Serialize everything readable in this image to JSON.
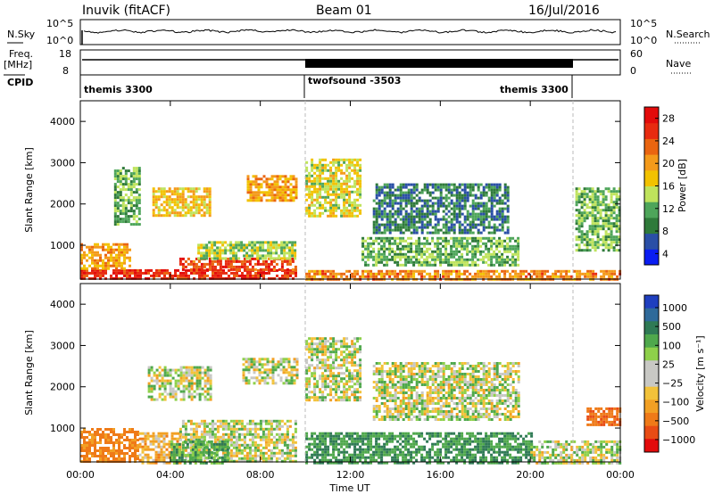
{
  "header": {
    "station": "Inuvik (fitACF)",
    "beam": "Beam 01",
    "date": "16/Jul/2016"
  },
  "panels": {
    "nsky": {
      "label": "N.Sky",
      "left_ticks": [
        "10^5",
        "10^0"
      ],
      "right_ticks": [
        "10^5",
        "10^0"
      ],
      "right_label": "N.Search",
      "right_label_style": "dotted"
    },
    "freq": {
      "label_line1": "Freq.",
      "label_line2": "[MHz]",
      "left_ticks": [
        "18",
        "8"
      ],
      "right_ticks": [
        "60",
        "0"
      ],
      "right_label": "Nave",
      "right_label_style": "dotted"
    },
    "cpid": {
      "label": "CPID",
      "segments": [
        {
          "name": "themis 3300",
          "start_hour": 0,
          "end_hour": 10
        },
        {
          "name": "twofsound -3503",
          "start_hour": 10,
          "end_hour": 22
        },
        {
          "name": "themis 3300",
          "start_hour": 22,
          "end_hour": 24
        }
      ]
    }
  },
  "axes": {
    "ylabel": "Slant Range [km]",
    "xlabel": "Time UT",
    "yticks": [
      "1000",
      "2000",
      "3000",
      "4000"
    ],
    "xticks": [
      "00:00",
      "04:00",
      "08:00",
      "12:00",
      "16:00",
      "20:00",
      "00:00"
    ]
  },
  "colorbars": {
    "power": {
      "label": "Power [dB]",
      "ticks": [
        "4",
        "8",
        "12",
        "16",
        "20",
        "24",
        "28"
      ],
      "colors": [
        "#0a1df2",
        "#2a4fa6",
        "#2f7a3a",
        "#4ea55a",
        "#bfe35c",
        "#f2c200",
        "#f49a1a",
        "#ea6510",
        "#e82b10",
        "#e30b0b"
      ]
    },
    "velocity": {
      "label": "Velocity [m s⁻¹]",
      "ticks": [
        "1000",
        "500",
        "100",
        "25",
        "−25",
        "−100",
        "−500",
        "−1000"
      ],
      "colors": [
        "#1f3fbf",
        "#2f6a9a",
        "#2f7a55",
        "#4fa84c",
        "#8ed04a",
        "#c8c8c4",
        "#c8c8c4",
        "#f2c23a",
        "#f2a024",
        "#ef7a18",
        "#e84c14",
        "#e30b0b"
      ]
    }
  },
  "chart_data": [
    {
      "type": "heatmap",
      "title": "Power",
      "x_range_hours": [
        0,
        24
      ],
      "y_range_km": [
        180,
        4500
      ],
      "ylabel": "Slant Range [km]",
      "colorbar": "Power [dB]",
      "regions": [
        {
          "t0": 0.0,
          "t1": 9.6,
          "r0": 180,
          "r1": 420,
          "level": 28
        },
        {
          "t0": 4.4,
          "t1": 9.6,
          "r0": 420,
          "r1": 700,
          "level": 26
        },
        {
          "t0": 5.2,
          "t1": 9.6,
          "r0": 700,
          "r1": 1100,
          "level": 14
        },
        {
          "t0": 0.0,
          "t1": 2.2,
          "r0": 420,
          "r1": 1050,
          "level": 20
        },
        {
          "t0": 1.5,
          "t1": 2.6,
          "r0": 1500,
          "r1": 2900,
          "level": 12
        },
        {
          "t0": 3.2,
          "t1": 5.8,
          "r0": 1700,
          "r1": 2400,
          "level": 18
        },
        {
          "t0": 7.4,
          "t1": 9.6,
          "r0": 2100,
          "r1": 2700,
          "level": 20
        },
        {
          "t0": 10.0,
          "t1": 12.4,
          "r0": 1700,
          "r1": 3100,
          "level": 16
        },
        {
          "t0": 10.0,
          "t1": 24.0,
          "r0": 180,
          "r1": 400,
          "level": 22
        },
        {
          "t0": 12.5,
          "t1": 19.5,
          "r0": 500,
          "r1": 1200,
          "level": 12
        },
        {
          "t0": 13.0,
          "t1": 19.0,
          "r0": 1300,
          "r1": 2500,
          "level": 8
        },
        {
          "t0": 22.0,
          "t1": 24.0,
          "r0": 900,
          "r1": 2400,
          "level": 12
        }
      ]
    },
    {
      "type": "heatmap",
      "title": "Velocity",
      "x_range_hours": [
        0,
        24
      ],
      "y_range_km": [
        180,
        4500
      ],
      "ylabel": "Slant Range [km]",
      "xlabel": "Time UT",
      "colorbar": "Velocity [m s⁻¹]",
      "regions": [
        {
          "t0": 0.0,
          "t1": 2.6,
          "r0": 180,
          "r1": 1000,
          "velocity": -300
        },
        {
          "t0": 2.6,
          "t1": 4.4,
          "r0": 180,
          "r1": 900,
          "velocity": -120
        },
        {
          "t0": 4.4,
          "t1": 9.6,
          "r0": 180,
          "r1": 1200,
          "velocity": 0
        },
        {
          "t0": 4.0,
          "t1": 6.6,
          "r0": 180,
          "r1": 700,
          "velocity": 150
        },
        {
          "t0": 3.0,
          "t1": 5.8,
          "r0": 1700,
          "r1": 2500,
          "velocity": 0
        },
        {
          "t0": 7.2,
          "t1": 9.6,
          "r0": 2100,
          "r1": 2700,
          "velocity": 0
        },
        {
          "t0": 10.0,
          "t1": 12.4,
          "r0": 1700,
          "r1": 3200,
          "velocity": 0
        },
        {
          "t0": 10.0,
          "t1": 20.0,
          "r0": 180,
          "r1": 900,
          "velocity": 200
        },
        {
          "t0": 13.0,
          "t1": 19.5,
          "r0": 1200,
          "r1": 2600,
          "velocity": 0
        },
        {
          "t0": 20.0,
          "t1": 24.0,
          "r0": 180,
          "r1": 700,
          "velocity": 0
        },
        {
          "t0": 22.5,
          "t1": 24.0,
          "r0": 1100,
          "r1": 1500,
          "velocity": -400
        }
      ]
    }
  ]
}
